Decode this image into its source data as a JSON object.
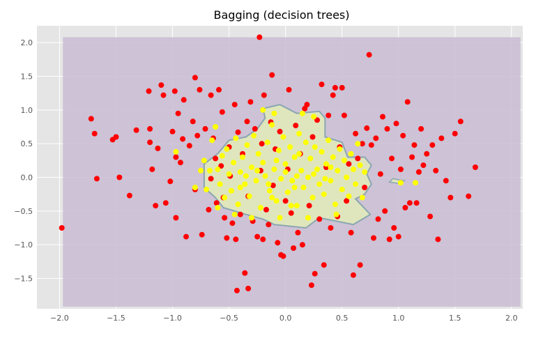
{
  "chart_data": {
    "type": "scatter",
    "title": "Bagging (decision trees)",
    "xlabel": "",
    "ylabel": "",
    "xlim": [
      -2.2,
      2.1
    ],
    "ylim": [
      -1.95,
      2.25
    ],
    "xticks": [
      -2.0,
      -1.5,
      -1.0,
      -0.5,
      0.0,
      0.5,
      1.0,
      1.5,
      2.0
    ],
    "xtick_labels": [
      "−2.0",
      "−1.5",
      "−1.0",
      "−0.5",
      "0.0",
      "0.5",
      "1.0",
      "1.5",
      "2.0"
    ],
    "yticks": [
      -1.5,
      -1.0,
      -0.5,
      0.0,
      0.5,
      1.0,
      1.5,
      2.0
    ],
    "ytick_labels": [
      "−1.5",
      "−1.0",
      "−0.5",
      "0.0",
      "0.5",
      "1.0",
      "1.5",
      "2.0"
    ],
    "grid": true,
    "colors": {
      "background": "#e5e5e5",
      "grid": "#ffffff",
      "region_outer": "#c9bcd4",
      "region_inner": "#dfe6bd",
      "boundary": "#8aa6b0",
      "class_outer": "#ff0000",
      "class_inner": "#ffff00"
    },
    "decision_region": {
      "outer_extent": {
        "x": [
          -1.97,
          2.08
        ],
        "y": [
          -1.92,
          2.08
        ]
      },
      "inner_polygon": [
        [
          -0.2,
          1.02
        ],
        [
          -0.05,
          1.08
        ],
        [
          0.1,
          0.95
        ],
        [
          0.3,
          0.98
        ],
        [
          0.35,
          0.88
        ],
        [
          0.35,
          0.6
        ],
        [
          0.5,
          0.52
        ],
        [
          0.55,
          0.3
        ],
        [
          0.7,
          0.3
        ],
        [
          0.76,
          0.18
        ],
        [
          0.72,
          0.05
        ],
        [
          0.76,
          -0.1
        ],
        [
          0.7,
          -0.25
        ],
        [
          0.62,
          -0.32
        ],
        [
          0.75,
          -0.55
        ],
        [
          0.6,
          -0.7
        ],
        [
          0.3,
          -0.6
        ],
        [
          0.18,
          -0.75
        ],
        [
          -0.1,
          -0.7
        ],
        [
          -0.2,
          -0.62
        ],
        [
          -0.35,
          -0.55
        ],
        [
          -0.55,
          -0.45
        ],
        [
          -0.62,
          -0.3
        ],
        [
          -0.72,
          -0.15
        ],
        [
          -0.72,
          0.2
        ],
        [
          -0.6,
          0.35
        ],
        [
          -0.5,
          0.55
        ],
        [
          -0.35,
          0.6
        ],
        [
          -0.25,
          0.72
        ],
        [
          -0.18,
          0.88
        ]
      ],
      "inner_islands": [
        [
          [
            0.95,
            -0.02
          ],
          [
            1.05,
            -0.05
          ],
          [
            1.0,
            -0.09
          ],
          [
            0.92,
            -0.07
          ]
        ]
      ]
    },
    "series": [
      {
        "color": "#ff0000",
        "points": [
          [
            -1.98,
            -0.75
          ],
          [
            -1.72,
            0.87
          ],
          [
            -1.69,
            0.65
          ],
          [
            -1.67,
            -0.02
          ],
          [
            -1.53,
            0.56
          ],
          [
            -1.5,
            0.6
          ],
          [
            -1.47,
            0.0
          ],
          [
            -1.38,
            -0.27
          ],
          [
            -1.32,
            0.7
          ],
          [
            -1.21,
            1.28
          ],
          [
            -1.2,
            0.72
          ],
          [
            -1.2,
            0.52
          ],
          [
            -1.18,
            0.12
          ],
          [
            -1.15,
            -0.42
          ],
          [
            -1.13,
            0.43
          ],
          [
            -1.1,
            1.37
          ],
          [
            -1.08,
            1.22
          ],
          [
            -1.06,
            -0.38
          ],
          [
            -1.02,
            -0.06
          ],
          [
            -1.0,
            0.68
          ],
          [
            -0.98,
            1.28
          ],
          [
            -0.97,
            0.3
          ],
          [
            -0.97,
            -0.6
          ],
          [
            -0.95,
            0.95
          ],
          [
            -0.93,
            0.22
          ],
          [
            -0.91,
            0.57
          ],
          [
            -0.9,
            1.15
          ],
          [
            -0.88,
            -0.88
          ],
          [
            -0.85,
            0.47
          ],
          [
            -0.82,
            0.83
          ],
          [
            -0.8,
            1.48
          ],
          [
            -0.78,
            0.62
          ],
          [
            -0.76,
            1.3
          ],
          [
            -0.74,
            -0.85
          ],
          [
            -0.71,
            0.72
          ],
          [
            -0.68,
            -0.48
          ],
          [
            -0.66,
            1.22
          ],
          [
            -0.64,
            0.58
          ],
          [
            -0.61,
            -0.38
          ],
          [
            -0.59,
            1.3
          ],
          [
            -0.57,
            0.17
          ],
          [
            -0.56,
            0.97
          ],
          [
            -0.54,
            -0.6
          ],
          [
            -0.52,
            -0.9
          ],
          [
            -0.5,
            0.45
          ],
          [
            -0.49,
            0.02
          ],
          [
            -0.47,
            -0.68
          ],
          [
            -0.45,
            1.08
          ],
          [
            -0.44,
            -0.92
          ],
          [
            -0.42,
            0.67
          ],
          [
            -0.4,
            -0.55
          ],
          [
            -0.38,
            0.35
          ],
          [
            -0.36,
            -1.42
          ],
          [
            -0.34,
            0.83
          ],
          [
            -0.33,
            -0.28
          ],
          [
            -0.31,
            1.12
          ],
          [
            -0.29,
            -0.65
          ],
          [
            -0.27,
            0.72
          ],
          [
            -0.25,
            -0.88
          ],
          [
            -0.23,
            2.08
          ],
          [
            -0.22,
            0.1
          ],
          [
            -0.21,
            0.5
          ],
          [
            -0.2,
            -0.92
          ],
          [
            -0.19,
            1.22
          ],
          [
            -0.17,
            -0.48
          ],
          [
            -0.15,
            -0.7
          ],
          [
            -0.13,
            0.82
          ],
          [
            -0.12,
            1.52
          ],
          [
            -0.11,
            -0.12
          ],
          [
            -0.09,
            0.42
          ],
          [
            -0.07,
            -0.97
          ],
          [
            -0.05,
            0.68
          ],
          [
            -0.04,
            -1.15
          ],
          [
            -0.02,
            -1.17
          ],
          [
            0.0,
            -0.35
          ],
          [
            0.02,
            0.12
          ],
          [
            0.03,
            1.3
          ],
          [
            0.05,
            -0.53
          ],
          [
            0.07,
            -1.05
          ],
          [
            0.09,
            0.77
          ],
          [
            0.11,
            -0.82
          ],
          [
            0.13,
            0.35
          ],
          [
            0.15,
            -1.0
          ],
          [
            0.17,
            1.02
          ],
          [
            0.19,
            1.08
          ],
          [
            0.21,
            -0.42
          ],
          [
            0.23,
            -1.6
          ],
          [
            0.24,
            0.6
          ],
          [
            0.26,
            -1.43
          ],
          [
            0.28,
            0.85
          ],
          [
            0.3,
            -0.62
          ],
          [
            0.32,
            1.38
          ],
          [
            0.34,
            -1.3
          ],
          [
            0.36,
            0.15
          ],
          [
            0.38,
            0.92
          ],
          [
            0.4,
            -0.75
          ],
          [
            0.42,
            1.22
          ],
          [
            0.44,
            1.33
          ],
          [
            0.46,
            -0.58
          ],
          [
            0.48,
            0.45
          ],
          [
            0.5,
            1.33
          ],
          [
            0.52,
            0.92
          ],
          [
            0.54,
            -0.35
          ],
          [
            0.56,
            0.2
          ],
          [
            0.58,
            -0.82
          ],
          [
            0.6,
            -1.45
          ],
          [
            0.62,
            0.65
          ],
          [
            0.64,
            0.28
          ],
          [
            0.66,
            -1.3
          ],
          [
            0.68,
            0.5
          ],
          [
            0.7,
            -0.15
          ],
          [
            0.72,
            0.73
          ],
          [
            0.74,
            1.82
          ],
          [
            0.76,
            0.48
          ],
          [
            0.78,
            -0.9
          ],
          [
            0.8,
            0.58
          ],
          [
            0.82,
            -0.62
          ],
          [
            0.84,
            0.05
          ],
          [
            0.86,
            0.9
          ],
          [
            0.88,
            -0.5
          ],
          [
            0.9,
            0.72
          ],
          [
            0.92,
            -0.92
          ],
          [
            0.94,
            0.28
          ],
          [
            0.96,
            -0.75
          ],
          [
            0.98,
            0.8
          ],
          [
            1.0,
            -0.88
          ],
          [
            1.02,
            0.12
          ],
          [
            1.04,
            0.62
          ],
          [
            1.06,
            -0.45
          ],
          [
            1.08,
            1.12
          ],
          [
            1.1,
            -0.38
          ],
          [
            1.12,
            0.3
          ],
          [
            1.14,
            0.48
          ],
          [
            1.16,
            -0.38
          ],
          [
            1.18,
            0.08
          ],
          [
            1.2,
            0.72
          ],
          [
            1.22,
            0.18
          ],
          [
            1.25,
            0.35
          ],
          [
            1.28,
            -0.58
          ],
          [
            1.3,
            0.48
          ],
          [
            1.33,
            0.1
          ],
          [
            1.35,
            -0.92
          ],
          [
            1.38,
            0.58
          ],
          [
            1.42,
            -0.05
          ],
          [
            1.46,
            -0.3
          ],
          [
            1.5,
            0.65
          ],
          [
            1.55,
            0.83
          ],
          [
            1.62,
            -0.28
          ],
          [
            1.68,
            0.15
          ],
          [
            -0.43,
            -1.68
          ],
          [
            -0.33,
            -1.65
          ],
          [
            -0.62,
            0.28
          ],
          [
            -0.8,
            -0.18
          ],
          [
            -0.66,
            -0.02
          ],
          [
            -0.55,
            -0.3
          ]
        ]
      },
      {
        "color": "#ffff00",
        "points": [
          [
            -0.97,
            0.38
          ],
          [
            -0.8,
            -0.15
          ],
          [
            -0.75,
            0.1
          ],
          [
            -0.72,
            0.25
          ],
          [
            -0.7,
            -0.18
          ],
          [
            -0.67,
            0.1
          ],
          [
            -0.65,
            0.55
          ],
          [
            -0.62,
            0.75
          ],
          [
            -0.6,
            0.12
          ],
          [
            -0.58,
            -0.1
          ],
          [
            -0.56,
            0.32
          ],
          [
            -0.54,
            -0.3
          ],
          [
            -0.52,
            0.42
          ],
          [
            -0.5,
            0.05
          ],
          [
            -0.48,
            -0.2
          ],
          [
            -0.46,
            0.22
          ],
          [
            -0.44,
            0.58
          ],
          [
            -0.42,
            -0.4
          ],
          [
            -0.4,
            0.08
          ],
          [
            -0.38,
            0.3
          ],
          [
            -0.36,
            -0.1
          ],
          [
            -0.34,
            0.48
          ],
          [
            -0.32,
            -0.28
          ],
          [
            -0.3,
            0.15
          ],
          [
            -0.28,
            0.62
          ],
          [
            -0.26,
            -0.05
          ],
          [
            -0.24,
            0.35
          ],
          [
            -0.22,
            -0.45
          ],
          [
            -0.2,
            0.22
          ],
          [
            -0.18,
            0.02
          ],
          [
            -0.16,
            0.52
          ],
          [
            -0.14,
            -0.2
          ],
          [
            -0.12,
            0.78
          ],
          [
            -0.1,
            0.12
          ],
          [
            -0.08,
            -0.35
          ],
          [
            -0.06,
            0.4
          ],
          [
            -0.04,
            -0.02
          ],
          [
            -0.02,
            0.6
          ],
          [
            0.0,
            0.2
          ],
          [
            0.02,
            -0.22
          ],
          [
            0.04,
            0.45
          ],
          [
            0.06,
            -0.05
          ],
          [
            0.08,
            0.3
          ],
          [
            0.1,
            -0.42
          ],
          [
            0.12,
            0.65
          ],
          [
            0.14,
            0.1
          ],
          [
            0.16,
            -0.15
          ],
          [
            0.18,
            0.52
          ],
          [
            0.2,
            0.0
          ],
          [
            0.22,
            0.28
          ],
          [
            0.24,
            -0.3
          ],
          [
            0.26,
            0.45
          ],
          [
            0.28,
            0.12
          ],
          [
            0.3,
            -0.1
          ],
          [
            0.32,
            0.38
          ],
          [
            0.34,
            -0.25
          ],
          [
            0.36,
            0.2
          ],
          [
            0.38,
            0.55
          ],
          [
            0.4,
            -0.05
          ],
          [
            0.42,
            0.3
          ],
          [
            0.44,
            -0.4
          ],
          [
            0.46,
            0.1
          ],
          [
            0.48,
            0.42
          ],
          [
            0.5,
            -0.18
          ],
          [
            0.52,
            0.25
          ],
          [
            0.54,
            0.0
          ],
          [
            0.56,
            -0.28
          ],
          [
            0.58,
            0.35
          ],
          [
            0.6,
            0.12
          ],
          [
            0.62,
            -0.1
          ],
          [
            0.64,
            0.5
          ],
          [
            0.66,
            0.18
          ],
          [
            0.68,
            -0.3
          ],
          [
            0.7,
            0.08
          ],
          [
            -0.2,
            1.0
          ],
          [
            -0.1,
            0.95
          ],
          [
            0.15,
            0.95
          ],
          [
            0.25,
            0.9
          ],
          [
            -0.45,
            -0.55
          ],
          [
            -0.3,
            -0.6
          ],
          [
            -0.05,
            -0.6
          ],
          [
            0.05,
            -0.42
          ],
          [
            0.2,
            -0.6
          ],
          [
            0.45,
            -0.55
          ],
          [
            1.02,
            -0.08
          ],
          [
            1.15,
            -0.08
          ],
          [
            -0.6,
            -0.45
          ],
          [
            0.0,
            0.08
          ],
          [
            -0.15,
            -0.1
          ],
          [
            0.1,
            0.02
          ],
          [
            -0.35,
            0.02
          ],
          [
            0.35,
            -0.02
          ],
          [
            -0.25,
            0.1
          ],
          [
            0.25,
            0.05
          ],
          [
            -0.08,
            0.25
          ],
          [
            0.08,
            -0.15
          ],
          [
            -0.4,
            -0.15
          ],
          [
            0.4,
            0.15
          ],
          [
            -0.12,
            -0.3
          ],
          [
            0.12,
            0.35
          ]
        ]
      }
    ]
  }
}
